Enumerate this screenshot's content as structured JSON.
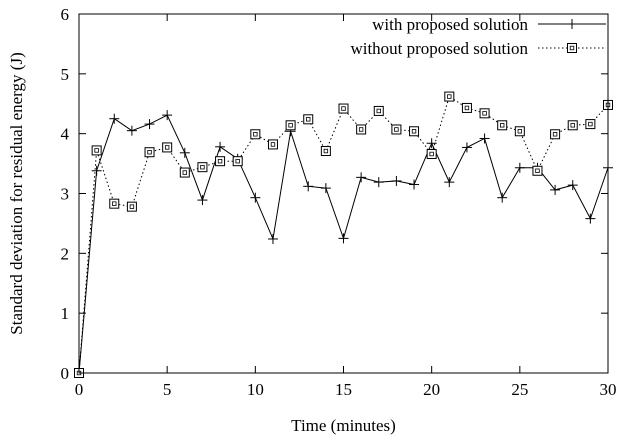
{
  "chart_data": {
    "type": "line",
    "xlabel": "Time (minutes)",
    "ylabel": "Standard deviation for residual energy (J)",
    "xlim": [
      0,
      30
    ],
    "ylim": [
      0,
      6
    ],
    "x_ticks": [
      0,
      5,
      10,
      15,
      20,
      25,
      30
    ],
    "y_ticks": [
      0,
      1,
      2,
      3,
      4,
      5,
      6
    ],
    "grid": false,
    "legend_position": "top-right",
    "series": [
      {
        "name": "with proposed solution",
        "marker": "plus",
        "line_style": "solid",
        "color": "#000000",
        "x": [
          0,
          1,
          2,
          3,
          4,
          5,
          6,
          7,
          8,
          9,
          10,
          11,
          12,
          13,
          14,
          15,
          16,
          17,
          18,
          19,
          20,
          21,
          22,
          23,
          24,
          25,
          26,
          27,
          28,
          29,
          30
        ],
        "values": [
          0,
          3.38,
          4.25,
          4.05,
          4.16,
          4.31,
          3.68,
          2.89,
          3.78,
          3.58,
          2.93,
          2.24,
          4.04,
          3.12,
          3.09,
          2.25,
          3.27,
          3.19,
          3.21,
          3.15,
          3.84,
          3.19,
          3.77,
          3.92,
          2.93,
          3.43,
          3.43,
          3.06,
          3.14,
          2.58,
          3.43
        ]
      },
      {
        "name": "without proposed solution",
        "marker": "square",
        "line_style": "dotted",
        "color": "#000000",
        "x": [
          0,
          1,
          2,
          3,
          4,
          5,
          6,
          7,
          8,
          9,
          10,
          11,
          12,
          13,
          14,
          15,
          16,
          17,
          18,
          19,
          20,
          21,
          22,
          23,
          24,
          25,
          26,
          27,
          28,
          29,
          30
        ],
        "values": [
          0,
          3.72,
          2.83,
          2.78,
          3.69,
          3.77,
          3.35,
          3.44,
          3.54,
          3.54,
          3.99,
          3.82,
          4.14,
          4.24,
          3.71,
          4.42,
          4.07,
          4.38,
          4.07,
          4.04,
          3.66,
          4.62,
          4.43,
          4.34,
          4.14,
          4.04,
          3.38,
          3.99,
          4.14,
          4.16,
          4.48
        ]
      }
    ]
  }
}
